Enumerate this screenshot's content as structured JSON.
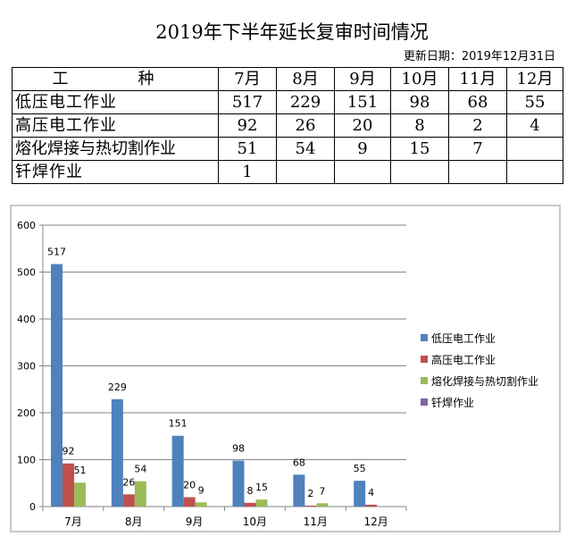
{
  "title": "2019年下半年延长复审时间情况",
  "updated": "更新日期：2019年12月31日",
  "table": {
    "header": [
      "工　种",
      "7月",
      "8月",
      "9月",
      "10月",
      "11月",
      "12月"
    ],
    "rows": [
      {
        "name": "低压电工作业",
        "values": [
          "517",
          "229",
          "151",
          "98",
          "68",
          "55"
        ]
      },
      {
        "name": "高压电工作业",
        "values": [
          "92",
          "26",
          "20",
          "8",
          "2",
          "4"
        ]
      },
      {
        "name": "熔化焊接与热切割作业",
        "values": [
          "51",
          "54",
          "9",
          "15",
          "7",
          ""
        ]
      },
      {
        "name": "钎焊作业",
        "values": [
          "1",
          "",
          "",
          "",
          "",
          ""
        ]
      }
    ]
  },
  "colors": {
    "series1": "#4f81bd",
    "series2": "#c0504d",
    "series3": "#9bbb59",
    "series4": "#8064a2"
  },
  "chart_data": {
    "type": "bar",
    "title": "",
    "xlabel": "",
    "ylabel": "",
    "categories": [
      "7月",
      "8月",
      "9月",
      "10月",
      "11月",
      "12月"
    ],
    "series": [
      {
        "name": "低压电工作业",
        "values": [
          517,
          229,
          151,
          98,
          68,
          55
        ]
      },
      {
        "name": "高压电工作业",
        "values": [
          92,
          26,
          20,
          8,
          2,
          4
        ]
      },
      {
        "name": "熔化焊接与热切割作业",
        "values": [
          51,
          54,
          9,
          15,
          7,
          null
        ]
      },
      {
        "name": "钎焊作业",
        "values": [
          1,
          null,
          null,
          null,
          null,
          null
        ]
      }
    ],
    "ylim": [
      0,
      600
    ],
    "yticks": [
      0,
      100,
      200,
      300,
      400,
      500,
      600
    ],
    "grid": true,
    "legend_position": "right",
    "data_labels": true
  }
}
